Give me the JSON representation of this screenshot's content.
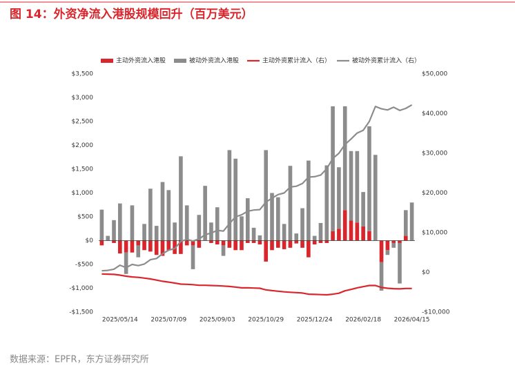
{
  "chart_data": {
    "type": "bar",
    "title": "图 14：外资净流入港股规模回升（百万美元）",
    "source": "数据来源：EPFR，东方证券研究所",
    "categories": [
      null,
      null,
      null,
      "2025/05/14",
      null,
      null,
      null,
      null,
      null,
      null,
      null,
      "2025/07/09",
      null,
      null,
      null,
      null,
      null,
      null,
      null,
      "2025/09/03",
      null,
      null,
      null,
      null,
      null,
      null,
      null,
      "2025/10/29",
      null,
      null,
      null,
      null,
      null,
      null,
      null,
      "2025/12/24",
      null,
      null,
      null,
      null,
      null,
      null,
      null,
      "2026/02/18",
      null,
      null,
      null,
      null,
      null,
      null,
      null,
      "2026/04/15"
    ],
    "series": [
      {
        "name": "主动外资流入港股",
        "type": "bar",
        "color": "#d9262c",
        "values": [
          -100,
          0,
          -50,
          -270,
          -250,
          -250,
          -100,
          -200,
          -230,
          -300,
          -320,
          -200,
          -280,
          -280,
          -100,
          -100,
          -150,
          0,
          -50,
          -80,
          -100,
          -150,
          -200,
          -200,
          -50,
          -50,
          -80,
          -440,
          -200,
          -150,
          -180,
          -150,
          -60,
          -150,
          -350,
          -80,
          -50,
          -50,
          200,
          250,
          640,
          420,
          380,
          300,
          200,
          0,
          -450,
          -200,
          -50,
          -50,
          100,
          0
        ]
      },
      {
        "name": "被动外资流入港股",
        "type": "bar",
        "color": "#8c8c8c",
        "values": [
          650,
          100,
          430,
          780,
          -450,
          740,
          -250,
          350,
          1090,
          310,
          1230,
          1060,
          380,
          1770,
          740,
          -500,
          540,
          1150,
          380,
          700,
          -220,
          1900,
          1720,
          510,
          890,
          270,
          110,
          1900,
          1000,
          910,
          350,
          1570,
          150,
          680,
          1680,
          100,
          370,
          1580,
          2620,
          1290,
          2180,
          1460,
          1500,
          720,
          2200,
          1800,
          -600,
          -100,
          -100,
          -850,
          540,
          800
        ]
      },
      {
        "name": "主动外资累计流入（右）",
        "type": "line",
        "axis": "y2",
        "color": "#d9262c",
        "values": [
          -400,
          -450,
          -500,
          -700,
          -950,
          -1150,
          -1250,
          -1450,
          -1650,
          -1950,
          -2250,
          -2450,
          -2700,
          -2950,
          -3000,
          -3100,
          -3250,
          -3250,
          -3300,
          -3350,
          -3450,
          -3550,
          -3700,
          -3900,
          -3900,
          -3950,
          -4000,
          -4400,
          -4600,
          -4750,
          -4900,
          -5000,
          -5100,
          -5200,
          -5500,
          -5550,
          -5600,
          -5650,
          -5500,
          -5250,
          -4650,
          -4300,
          -3900,
          -3600,
          -3300,
          -3300,
          -3800,
          -4000,
          -4100,
          -4150,
          -4050,
          -4050
        ]
      },
      {
        "name": "被动外资累计流入（右）",
        "type": "line",
        "axis": "y2",
        "color": "#8c8c8c",
        "values": [
          400,
          500,
          800,
          1800,
          1200,
          2000,
          1700,
          2100,
          3200,
          3500,
          4700,
          5600,
          6000,
          7800,
          8300,
          7900,
          8400,
          9500,
          9900,
          10600,
          10400,
          12300,
          14000,
          14500,
          15400,
          15700,
          15800,
          17700,
          18700,
          19600,
          20000,
          21500,
          21700,
          22400,
          24000,
          24100,
          24500,
          26100,
          28700,
          30000,
          32200,
          33600,
          35100,
          35800,
          38000,
          41800,
          41200,
          40900,
          41600,
          40800,
          41300,
          42200
        ]
      }
    ],
    "stacked": true,
    "ylim": [
      -1500,
      3500
    ],
    "yticks": [
      {
        "value": -1500,
        "label": "-$1,500"
      },
      {
        "value": -1000,
        "label": "-$1,000"
      },
      {
        "value": -500,
        "label": "-$500"
      },
      {
        "value": 0,
        "label": "$0"
      },
      {
        "value": 500,
        "label": "$500"
      },
      {
        "value": 1000,
        "label": "$1,000"
      },
      {
        "value": 1500,
        "label": "$1,500"
      },
      {
        "value": 2000,
        "label": "$2,000"
      },
      {
        "value": 2500,
        "label": "$2,500"
      },
      {
        "value": 3000,
        "label": "$3,000"
      },
      {
        "value": 3500,
        "label": "$3,500"
      }
    ],
    "y2lim": [
      -10000,
      50000
    ],
    "y2ticks": [
      {
        "value": -10000,
        "label": "-$10,000"
      },
      {
        "value": 0,
        "label": "$0"
      },
      {
        "value": 10000,
        "label": "$10,000"
      },
      {
        "value": 20000,
        "label": "$20,000"
      },
      {
        "value": 30000,
        "label": "$30,000"
      },
      {
        "value": 40000,
        "label": "$40,000"
      },
      {
        "value": 50000,
        "label": "$50,000"
      }
    ],
    "grid": false,
    "legend": "top"
  }
}
